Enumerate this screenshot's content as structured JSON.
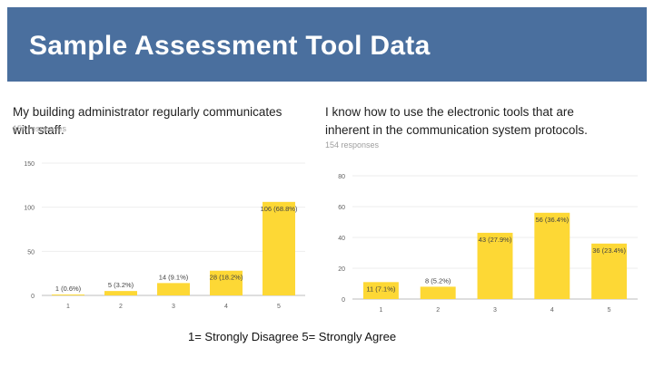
{
  "slide": {
    "title": "Sample Assessment Tool Data",
    "footer": "1= Strongly Disagree  5= Strongly Agree",
    "header_color": "#4a6f9e",
    "bar_color": "#fdd835"
  },
  "chart_data": [
    {
      "type": "bar",
      "title": "My building administrator regularly communicates with staff.",
      "subtitle": "154 responses",
      "categories": [
        "1",
        "2",
        "3",
        "4",
        "5"
      ],
      "values": [
        1,
        5,
        14,
        28,
        106
      ],
      "data_labels": [
        "1 (0.6%)",
        "5 (3.2%)",
        "14 (9.1%)",
        "28 (18.2%)",
        "106 (68.8%)"
      ],
      "ylim": [
        0,
        150
      ],
      "yticks": [
        0,
        50,
        100,
        150
      ],
      "grid": true,
      "legend": "none"
    },
    {
      "type": "bar",
      "title": "I know how to use the electronic tools that are inherent in the communication system protocols.",
      "subtitle": "154 responses",
      "categories": [
        "1",
        "2",
        "3",
        "4",
        "5"
      ],
      "values": [
        11,
        8,
        43,
        56,
        36
      ],
      "data_labels": [
        "11 (7.1%)",
        "8 (5.2%)",
        "43 (27.9%)",
        "56 (36.4%)",
        "36 (23.4%)"
      ],
      "ylim": [
        0,
        80
      ],
      "yticks": [
        0,
        20,
        40,
        60,
        80
      ],
      "grid": true,
      "legend": "none"
    }
  ]
}
